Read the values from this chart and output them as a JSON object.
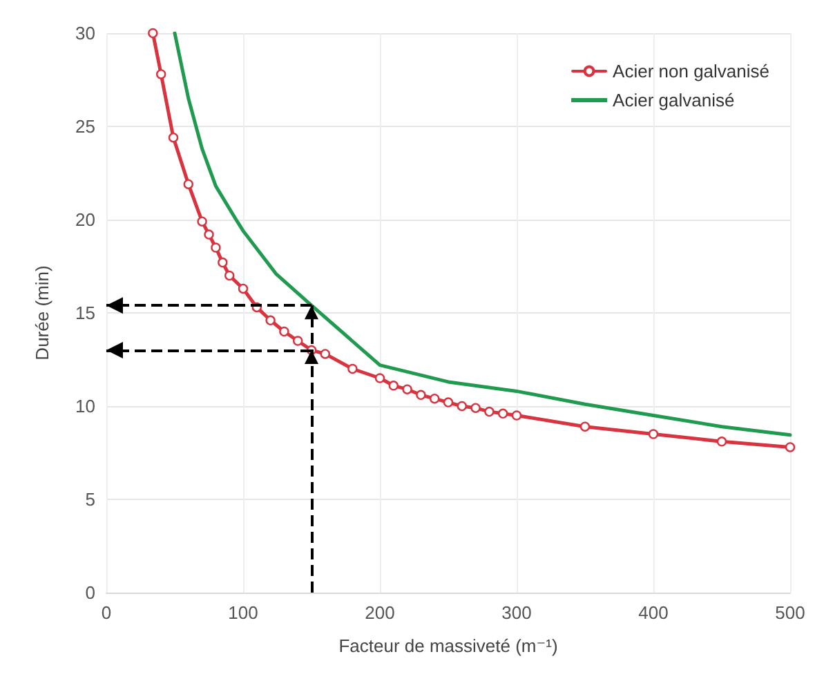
{
  "chart_data": {
    "type": "line",
    "xlabel": "Facteur de massiveté (m⁻¹)",
    "ylabel": "Durée (min)",
    "xlim": [
      0,
      500
    ],
    "xticks": [
      0,
      100,
      200,
      300,
      400,
      500
    ],
    "ylim": [
      0,
      30
    ],
    "yticks": [
      0,
      5,
      10,
      15,
      20,
      25,
      30
    ],
    "grid": true,
    "legend": "top right",
    "line_style": "solid",
    "series": [
      {
        "name": "Acier non galvanisé",
        "color": "#d9333f",
        "marker": "circle",
        "x": [
          34,
          40,
          49,
          60,
          70,
          75,
          80,
          85,
          90,
          100,
          110,
          120,
          130,
          140,
          150,
          160,
          180,
          200,
          210,
          220,
          230,
          240,
          250,
          260,
          270,
          280,
          290,
          300,
          350,
          400,
          450,
          500
        ],
        "values": [
          30,
          27.8,
          24.4,
          21.9,
          19.9,
          19.2,
          18.5,
          17.7,
          17.0,
          16.3,
          15.3,
          14.6,
          14.0,
          13.5,
          13.0,
          12.8,
          12.0,
          11.5,
          11.1,
          10.9,
          10.6,
          10.4,
          10.2,
          10.0,
          9.9,
          9.7,
          9.6,
          9.5,
          8.9,
          8.5,
          8.1,
          7.8
        ]
      },
      {
        "name": "Acier galvanisé",
        "color": "#1f9a4f",
        "marker": "none",
        "x": [
          50,
          60,
          70,
          80,
          94,
          100,
          124,
          150,
          200,
          250,
          300,
          350,
          400,
          450,
          500
        ],
        "values": [
          30,
          26.5,
          23.8,
          21.8,
          20.1,
          19.4,
          17.1,
          15.4,
          12.2,
          11.3,
          10.8,
          10.1,
          9.5,
          8.9,
          8.45
        ]
      }
    ],
    "ref_lines": [
      {
        "axis": "x",
        "value": 150,
        "line_style": "dashed",
        "color": "#000000"
      },
      {
        "axis": "y",
        "value": 15.4,
        "line_style": "dashed",
        "color": "#000000"
      },
      {
        "axis": "y",
        "value": 13,
        "line_style": "dashed",
        "color": "#000000"
      }
    ]
  }
}
